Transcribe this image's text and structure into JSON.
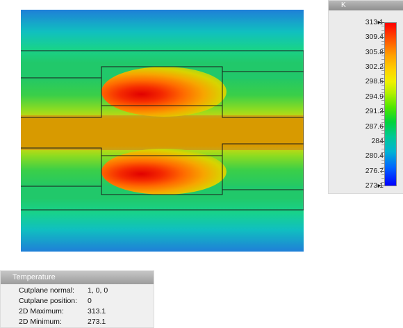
{
  "legend": {
    "unit": "K",
    "ticks": [
      "313.1",
      "309.4",
      "305.8",
      "302.2",
      "298.5",
      "294.9",
      "291.3",
      "287.6",
      "284",
      "280.4",
      "276.7",
      "273.1"
    ]
  },
  "info": {
    "title": "Temperature",
    "rows": [
      {
        "label": "Cutplane normal:",
        "value": "1, 0, 0"
      },
      {
        "label": "Cutplane position:",
        "value": "0"
      },
      {
        "label": "2D Maximum:",
        "value": "313.1"
      },
      {
        "label": "2D Minimum:",
        "value": "273.1"
      }
    ]
  },
  "colors": {
    "max": "#ff0000",
    "min": "#0000ff",
    "core": "#d89a00"
  }
}
